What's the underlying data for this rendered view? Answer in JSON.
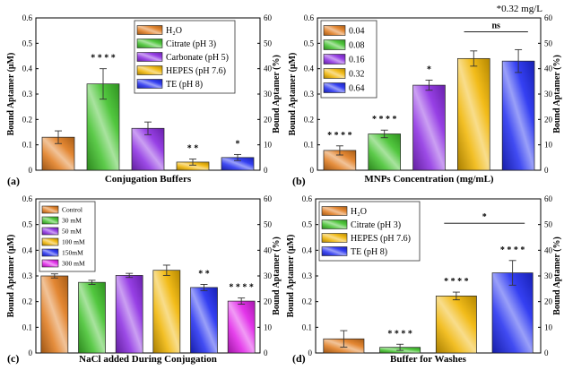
{
  "colors": {
    "orange": "#e07a1c",
    "green": "#3fc12a",
    "purple": "#8b2be2",
    "gold": "#f0b400",
    "blue": "#1f2bf0",
    "magenta": "#e020e8"
  },
  "chart_data": [
    {
      "panel_label": "(a)",
      "type": "bar",
      "xlabel": "Conjugation Buffers",
      "ylabel": "Bound Aptamer (μM)",
      "ylabel_right": "Bound Aptamer (%)",
      "ylim": [
        0,
        0.6
      ],
      "ylim_right": [
        0,
        60
      ],
      "yticks": [
        "0",
        "0.1",
        "0.2",
        "0.3",
        "0.4",
        "0.5",
        "0.6"
      ],
      "yticks_right": [
        "0",
        "10",
        "20",
        "30",
        "40",
        "50",
        "60"
      ],
      "categories": [
        "H₂O",
        "Citrate (pH 3)",
        "Carbonate (pH 5)",
        "HEPES (pH 7.6)",
        "TE (pH 8)"
      ],
      "values": [
        0.13,
        0.34,
        0.165,
        0.032,
        0.05
      ],
      "errors": [
        0.025,
        0.06,
        0.025,
        0.012,
        0.012
      ],
      "colors": [
        "orange",
        "green",
        "purple",
        "gold",
        "blue"
      ],
      "annotations": [
        "",
        "* * * *",
        "",
        "* *",
        "*"
      ],
      "legend": [
        "H₂O",
        "Citrate (pH 3)",
        "Carbonate (pH 5)",
        "HEPES (pH 7.6)",
        "TE (pH 8)"
      ],
      "legend_position": "top-right",
      "note": "",
      "bracket": null
    },
    {
      "panel_label": "(b)",
      "type": "bar",
      "xlabel": "MNPs Concentration (mg/mL)",
      "ylabel": "Bound Aptamer (μM)",
      "ylabel_right": "Bound Aptamer (%)",
      "ylim": [
        0,
        0.6
      ],
      "ylim_right": [
        0,
        60
      ],
      "yticks": [
        "0",
        "0.1",
        "0.2",
        "0.3",
        "0.4",
        "0.5",
        "0.6"
      ],
      "yticks_right": [
        "0",
        "10",
        "20",
        "30",
        "40",
        "50",
        "60"
      ],
      "categories": [
        "0.04",
        "0.08",
        "0.16",
        "0.32",
        "0.64"
      ],
      "values": [
        0.078,
        0.143,
        0.335,
        0.44,
        0.43
      ],
      "errors": [
        0.018,
        0.015,
        0.02,
        0.03,
        0.045
      ],
      "colors": [
        "orange",
        "green",
        "purple",
        "gold",
        "blue"
      ],
      "annotations": [
        "* * * *",
        "* * * *",
        "*",
        "",
        ""
      ],
      "legend": [
        "0.04",
        "0.08",
        "0.16",
        "0.32",
        "0.64"
      ],
      "legend_position": "top-left",
      "note": "*0.32 mg/L",
      "bracket": {
        "from": 3,
        "to": 4,
        "label": "ns",
        "y": 0.545
      }
    },
    {
      "panel_label": "(c)",
      "type": "bar",
      "xlabel": "NaCl added During Conjugation",
      "ylabel": "Bound Aptamer (μM)",
      "ylabel_right": "Bound Aptamer (%)",
      "ylim": [
        0,
        0.6
      ],
      "ylim_right": [
        0,
        60
      ],
      "yticks": [
        "0",
        "0.1",
        "0.2",
        "0.3",
        "0.4",
        "0.5",
        "0.6"
      ],
      "yticks_right": [
        "0",
        "10",
        "20",
        "30",
        "40",
        "50",
        "60"
      ],
      "categories": [
        "Control",
        "30 mM",
        "50 mM",
        "100 mM",
        "150mM",
        "300 mM"
      ],
      "values": [
        0.3,
        0.275,
        0.302,
        0.322,
        0.255,
        0.202
      ],
      "errors": [
        0.008,
        0.008,
        0.008,
        0.02,
        0.012,
        0.012
      ],
      "colors": [
        "orange",
        "green",
        "purple",
        "gold",
        "blue",
        "magenta"
      ],
      "annotations": [
        "",
        "",
        "",
        "",
        "* *",
        "* * * *"
      ],
      "legend": [
        "Control",
        "30 mM",
        "50 mM",
        "100 mM",
        "150mM",
        "300 mM"
      ],
      "legend_position": "top-left",
      "note": "",
      "bracket": null
    },
    {
      "panel_label": "(d)",
      "type": "bar",
      "xlabel": "Buffer for Washes",
      "ylabel": "Bound Aptamer (μM)",
      "ylabel_right": "Bound Aptamer (%)",
      "ylim": [
        0,
        0.6
      ],
      "ylim_right": [
        0,
        60
      ],
      "yticks": [
        "0",
        "0.1",
        "0.2",
        "0.3",
        "0.4",
        "0.5",
        "0.6"
      ],
      "yticks_right": [
        "0",
        "10",
        "20",
        "30",
        "40",
        "50",
        "60"
      ],
      "categories": [
        "H₂O",
        "Citrate (pH 3)",
        "HEPES (pH 7.6)",
        "TE (pH 8)"
      ],
      "values": [
        0.055,
        0.022,
        0.222,
        0.312
      ],
      "errors": [
        0.032,
        0.012,
        0.015,
        0.048
      ],
      "colors": [
        "orange",
        "green",
        "gold",
        "blue"
      ],
      "annotations": [
        "",
        "* * * *",
        "* * * *",
        "* * * *"
      ],
      "legend": [
        "H₂O",
        "Citrate (pH 3)",
        "HEPES (pH 7.6)",
        "TE (pH 8)"
      ],
      "legend_position": "top-left",
      "note": "",
      "bracket": {
        "from": 2,
        "to": 3,
        "label": "*",
        "y": 0.505
      }
    }
  ]
}
